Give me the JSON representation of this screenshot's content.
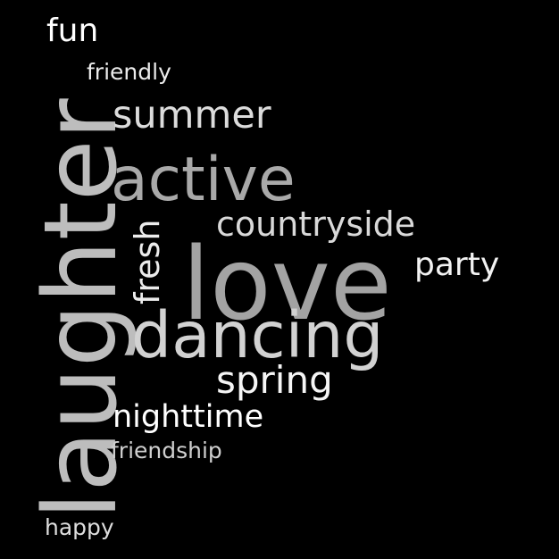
{
  "background_color": "#000000",
  "words": {
    "laughter": {
      "text": "laughter",
      "color": "#bdbdbd"
    },
    "love": {
      "text": "love",
      "color": "#a3a3a3"
    },
    "dancing": {
      "text": "dancing",
      "color": "#d2d2d2"
    },
    "active": {
      "text": "active",
      "color": "#a9a9a9"
    },
    "summer": {
      "text": "summer",
      "color": "#dcdcdc"
    },
    "countryside": {
      "text": "countryside",
      "color": "#d9d9d9"
    },
    "party": {
      "text": "party",
      "color": "#f2f2f2"
    },
    "spring": {
      "text": "spring",
      "color": "#f5f5f5"
    },
    "nighttime": {
      "text": "nighttime",
      "color": "#ffffff"
    },
    "fresh": {
      "text": "fresh",
      "color": "#ececec"
    },
    "fun": {
      "text": "fun",
      "color": "#ffffff"
    },
    "friendly": {
      "text": "friendly",
      "color": "#ececec"
    },
    "friendship": {
      "text": "friendship",
      "color": "#cfcfcf"
    },
    "happy": {
      "text": "happy",
      "color": "#dedede"
    }
  }
}
